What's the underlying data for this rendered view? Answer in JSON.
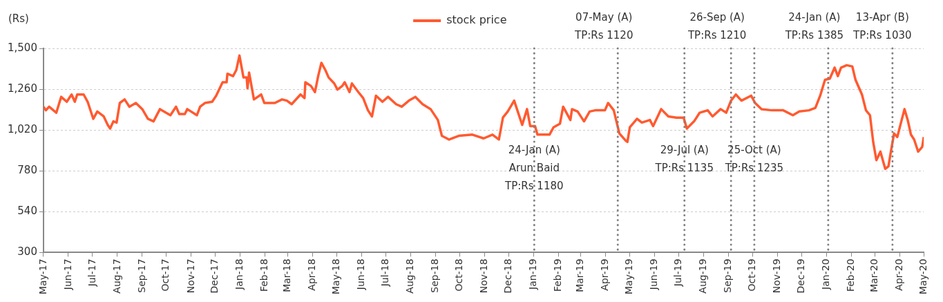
{
  "chart_data": {
    "type": "line",
    "ylabel": "(Rs)",
    "legend": "top",
    "grid": "y",
    "marker": "none",
    "line_style": "solid",
    "x": [
      "2017-05-01",
      "2017-05-04",
      "2017-05-08",
      "2017-05-17",
      "2017-05-23",
      "2017-05-30",
      "2017-06-05",
      "2017-06-09",
      "2017-06-12",
      "2017-06-20",
      "2017-06-25",
      "2017-07-02",
      "2017-07-07",
      "2017-07-15",
      "2017-07-20",
      "2017-07-23",
      "2017-07-27",
      "2017-07-31",
      "2017-08-04",
      "2017-08-10",
      "2017-08-16",
      "2017-08-24",
      "2017-09-01",
      "2017-09-08",
      "2017-09-15",
      "2017-09-23",
      "2017-10-06",
      "2017-10-13",
      "2017-10-17",
      "2017-10-24",
      "2017-10-27",
      "2017-11-08",
      "2017-11-12",
      "2017-11-18",
      "2017-11-27",
      "2017-12-02",
      "2017-12-10",
      "2017-12-15",
      "2017-12-16",
      "2017-12-23",
      "2017-12-27",
      "2017-12-31",
      "2018-01-05",
      "2018-01-09",
      "2018-01-10",
      "2018-01-12",
      "2018-01-18",
      "2018-01-27",
      "2018-01-31",
      "2018-02-13",
      "2018-02-22",
      "2018-02-28",
      "2018-03-06",
      "2018-03-17",
      "2018-03-22",
      "2018-03-23",
      "2018-03-30",
      "2018-04-04",
      "2018-04-08",
      "2018-04-12",
      "2018-04-17",
      "2018-04-21",
      "2018-04-28",
      "2018-05-02",
      "2018-05-08",
      "2018-05-11",
      "2018-05-17",
      "2018-05-20",
      "2018-05-28",
      "2018-06-03",
      "2018-06-09",
      "2018-06-14",
      "2018-06-19",
      "2018-06-27",
      "2018-07-04",
      "2018-07-14",
      "2018-07-21",
      "2018-07-30",
      "2018-08-07",
      "2018-08-16",
      "2018-08-26",
      "2018-09-04",
      "2018-09-09",
      "2018-09-18",
      "2018-09-30",
      "2018-10-17",
      "2018-10-31",
      "2018-11-11",
      "2018-11-19",
      "2018-11-24",
      "2018-11-30",
      "2018-12-08",
      "2018-12-18",
      "2018-12-24",
      "2018-12-28",
      "2019-01-03",
      "2019-01-06",
      "2019-01-21",
      "2019-01-26",
      "2019-02-03",
      "2019-02-07",
      "2019-02-16",
      "2019-02-18",
      "2019-02-25",
      "2019-03-05",
      "2019-03-12",
      "2019-03-19",
      "2019-03-31",
      "2019-04-04",
      "2019-04-11",
      "2019-04-18",
      "2019-04-26",
      "2019-04-28",
      "2019-05-01",
      "2019-05-10",
      "2019-05-16",
      "2019-05-26",
      "2019-05-30",
      "2019-06-09",
      "2019-06-18",
      "2019-06-28",
      "2019-07-07",
      "2019-07-11",
      "2019-07-20",
      "2019-07-27",
      "2019-08-06",
      "2019-08-12",
      "2019-08-22",
      "2019-08-29",
      "2019-09-04",
      "2019-09-10",
      "2019-09-17",
      "2019-09-29",
      "2019-10-04",
      "2019-10-12",
      "2019-10-25",
      "2019-11-08",
      "2019-11-20",
      "2019-11-28",
      "2019-12-10",
      "2019-12-18",
      "2019-12-24",
      "2019-12-30",
      "2020-01-05",
      "2020-01-11",
      "2020-01-15",
      "2020-01-19",
      "2020-01-26",
      "2020-02-02",
      "2020-02-06",
      "2020-02-14",
      "2020-02-19",
      "2020-02-24",
      "2020-02-28",
      "2020-03-03",
      "2020-03-08",
      "2020-03-14",
      "2020-03-18",
      "2020-03-21",
      "2020-03-25",
      "2020-03-29",
      "2020-04-03",
      "2020-04-07",
      "2020-04-11",
      "2020-04-15",
      "2020-04-19",
      "2020-04-24",
      "2020-04-29",
      "2020-05-01"
    ],
    "series": [
      {
        "name": "stock price",
        "color": "#ff5a30",
        "values": [
          1157,
          1136,
          1157,
          1122,
          1215,
          1186,
          1229,
          1186,
          1229,
          1229,
          1186,
          1086,
          1129,
          1100,
          1050,
          1029,
          1071,
          1064,
          1179,
          1200,
          1157,
          1179,
          1143,
          1086,
          1071,
          1143,
          1107,
          1157,
          1114,
          1114,
          1143,
          1107,
          1157,
          1179,
          1186,
          1222,
          1301,
          1301,
          1351,
          1337,
          1372,
          1458,
          1329,
          1329,
          1265,
          1358,
          1200,
          1229,
          1179,
          1179,
          1200,
          1193,
          1172,
          1229,
          1208,
          1301,
          1279,
          1243,
          1337,
          1415,
          1372,
          1329,
          1294,
          1258,
          1279,
          1301,
          1243,
          1294,
          1243,
          1208,
          1136,
          1100,
          1222,
          1186,
          1215,
          1172,
          1157,
          1193,
          1215,
          1172,
          1143,
          1079,
          986,
          964,
          986,
          993,
          971,
          993,
          964,
          1093,
          1129,
          1193,
          1050,
          1143,
          1043,
          1043,
          993,
          993,
          1036,
          1057,
          1157,
          1079,
          1143,
          1129,
          1071,
          1129,
          1136,
          1136,
          1179,
          1136,
          1000,
          957,
          950,
          1036,
          1086,
          1064,
          1079,
          1043,
          1143,
          1100,
          1093,
          1093,
          1029,
          1071,
          1122,
          1136,
          1100,
          1143,
          1122,
          1193,
          1229,
          1193,
          1222,
          1179,
          1143,
          1136,
          1136,
          1107,
          1129,
          1136,
          1150,
          1222,
          1315,
          1322,
          1387,
          1337,
          1387,
          1401,
          1394,
          1315,
          1229,
          1136,
          1107,
          950,
          843,
          893,
          792,
          807,
          893,
          1000,
          979,
          1071,
          1143,
          1079,
          993,
          964,
          893,
          921,
          979
        ]
      }
    ],
    "xlim": [
      "2017-05-01",
      "2020-05-01"
    ],
    "xticks": [
      {
        "value": "2017-05-01",
        "label": "May-17"
      },
      {
        "value": "2017-06-01",
        "label": "Jun-17"
      },
      {
        "value": "2017-07-01",
        "label": "Jul-17"
      },
      {
        "value": "2017-08-01",
        "label": "Aug-17"
      },
      {
        "value": "2017-09-01",
        "label": "Sep-17"
      },
      {
        "value": "2017-10-01",
        "label": "Oct-17"
      },
      {
        "value": "2017-11-01",
        "label": "Nov-17"
      },
      {
        "value": "2017-12-01",
        "label": "Dec-17"
      },
      {
        "value": "2018-01-01",
        "label": "Jan-18"
      },
      {
        "value": "2018-02-01",
        "label": "Feb-18"
      },
      {
        "value": "2018-03-01",
        "label": "Mar-18"
      },
      {
        "value": "2018-04-01",
        "label": "Apr-18"
      },
      {
        "value": "2018-05-01",
        "label": "May-18"
      },
      {
        "value": "2018-06-01",
        "label": "Jun-18"
      },
      {
        "value": "2018-07-01",
        "label": "Jul-18"
      },
      {
        "value": "2018-08-01",
        "label": "Aug-18"
      },
      {
        "value": "2018-09-01",
        "label": "Sep-18"
      },
      {
        "value": "2018-10-01",
        "label": "Oct-18"
      },
      {
        "value": "2018-11-01",
        "label": "Nov-18"
      },
      {
        "value": "2018-12-01",
        "label": "Dec-18"
      },
      {
        "value": "2019-01-01",
        "label": "Jan-19"
      },
      {
        "value": "2019-02-01",
        "label": "Feb-19"
      },
      {
        "value": "2019-03-01",
        "label": "Mar-19"
      },
      {
        "value": "2019-04-01",
        "label": "Apr-19"
      },
      {
        "value": "2019-05-01",
        "label": "May-19"
      },
      {
        "value": "2019-06-01",
        "label": "Jun-19"
      },
      {
        "value": "2019-07-01",
        "label": "Jul-19"
      },
      {
        "value": "2019-08-01",
        "label": "Aug-19"
      },
      {
        "value": "2019-09-01",
        "label": "Sep-19"
      },
      {
        "value": "2019-10-01",
        "label": "Oct-19"
      },
      {
        "value": "2019-11-01",
        "label": "Nov-19"
      },
      {
        "value": "2019-12-01",
        "label": "Dec-19"
      },
      {
        "value": "2020-01-01",
        "label": "Jan-20"
      },
      {
        "value": "2020-02-01",
        "label": "Feb-20"
      },
      {
        "value": "2020-03-01",
        "label": "Mar-20"
      },
      {
        "value": "2020-04-01",
        "label": "Apr-20"
      },
      {
        "value": "2020-05-01",
        "label": "May-20"
      }
    ],
    "ylim": [
      300,
      1500
    ],
    "yticks": [
      300,
      540,
      780,
      {
        "value": 1020,
        "label": "1,020"
      },
      {
        "value": 1260,
        "label": "1,260"
      },
      {
        "value": 1500,
        "label": "1,500"
      }
    ],
    "ref_lines": [
      {
        "axis": "x",
        "value": "2019-01-02",
        "label": "24-Jan (A)\nArun Baid\nTP:Rs 1180",
        "color": "#808080",
        "line_style": "dotted"
      },
      {
        "axis": "x",
        "value": "2019-04-16",
        "label": "07-May (A)\nTP:Rs 1120",
        "color": "#808080",
        "line_style": "dotted"
      },
      {
        "axis": "x",
        "value": "2019-07-08",
        "label": "29-Jul (A)\nTP:Rs 1135",
        "color": "#808080",
        "line_style": "dotted"
      },
      {
        "axis": "x",
        "value": "2019-09-04",
        "label": "26-Sep (A)\nTP:Rs 1210",
        "color": "#808080",
        "line_style": "dotted"
      },
      {
        "axis": "x",
        "value": "2019-10-03",
        "label": "25-Oct (A)\nTP:Rs 1235",
        "color": "#808080",
        "line_style": "dotted"
      },
      {
        "axis": "x",
        "value": "2020-01-03",
        "label": "24-Jan (A)\nTP:Rs 1385",
        "color": "#808080",
        "line_style": "dotted"
      },
      {
        "axis": "x",
        "value": "2020-03-23",
        "label": "13-Apr (B)\nTP:Rs 1030",
        "color": "#808080",
        "line_style": "dotted"
      }
    ]
  }
}
